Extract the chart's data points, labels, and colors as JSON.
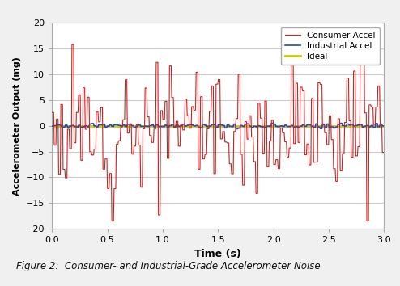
{
  "title": "Figure 2:  Consumer- and Industrial-Grade Accelerometer Noise",
  "xlabel": "Time (s)",
  "ylabel": "Accelerometer Output (mg)",
  "xlim": [
    0,
    3
  ],
  "ylim": [
    -20,
    20
  ],
  "yticks": [
    -20,
    -15,
    -10,
    -5,
    0,
    5,
    10,
    15,
    20
  ],
  "xticks": [
    0,
    0.5,
    1.0,
    1.5,
    2.0,
    2.5,
    3.0
  ],
  "consumer_color": "#cc2222",
  "industrial_color": "#2244cc",
  "ideal_color": "#cccc00",
  "consumer_label": "Consumer Accel",
  "industrial_label": "Industrial Accel",
  "ideal_label": "Ideal",
  "bg_color": "#f0f0f0",
  "plot_bg_color": "#ffffff",
  "grid_color": "#cccccc",
  "n_samples": 150,
  "hold_samples": 4,
  "consumer_noise_std": 5.5,
  "industrial_noise_std": 0.25,
  "seed": 12
}
